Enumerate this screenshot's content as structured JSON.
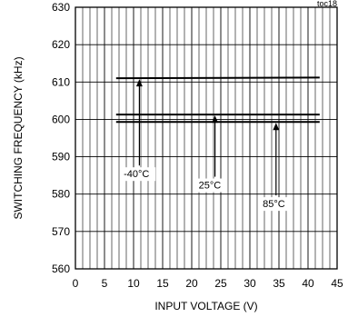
{
  "chart_data": {
    "type": "line",
    "tag": "toc18",
    "xlabel": "INPUT VOLTAGE (V)",
    "ylabel": "SWITCHING FREQUENCY  (kHz)",
    "xlim": [
      0,
      45
    ],
    "ylim": [
      560,
      630
    ],
    "x_ticks": [
      0,
      5,
      10,
      15,
      20,
      25,
      30,
      35,
      40,
      45
    ],
    "y_ticks": [
      560,
      570,
      580,
      590,
      600,
      610,
      620,
      630
    ],
    "grid": true,
    "series": [
      {
        "name": "-40°C",
        "x": [
          7,
          42
        ],
        "y": [
          611,
          611.2
        ]
      },
      {
        "name": "25°C",
        "x": [
          7,
          42
        ],
        "y": [
          601.3,
          601.3
        ]
      },
      {
        "name": "85°C",
        "x": [
          7,
          42
        ],
        "y": [
          599.3,
          599.3
        ]
      }
    ],
    "annotations": [
      {
        "text": "-40°C",
        "label_x": 8.3,
        "label_y": 584.5,
        "arrow_x": 11,
        "arrow_to_y": 611
      },
      {
        "text": "25°C",
        "label_x": 21.2,
        "label_y": 581.5,
        "arrow_x": 24,
        "arrow_to_y": 601.3
      },
      {
        "text": "85°C",
        "label_x": 32.2,
        "label_y": 576.5,
        "arrow_x": 34.5,
        "arrow_to_y": 599.3
      }
    ]
  }
}
